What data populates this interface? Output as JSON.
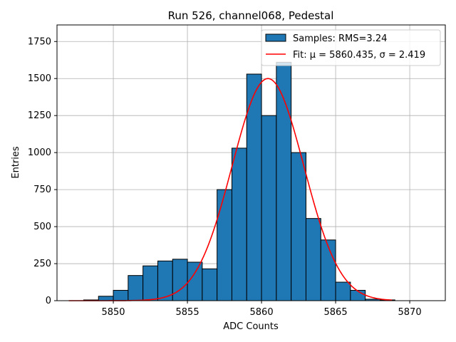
{
  "chart_data": {
    "type": "bar",
    "title": "Run 526, channel068, Pedestal",
    "xlabel": "ADC Counts",
    "ylabel": "Entries",
    "xlim": [
      5846.2,
      5872.4
    ],
    "ylim": [
      0,
      1862
    ],
    "xticks": [
      5850,
      5855,
      5860,
      5865,
      5870
    ],
    "yticks": [
      0,
      250,
      500,
      750,
      1000,
      1250,
      1500,
      1750
    ],
    "grid": true,
    "bin_width": 1.0,
    "bins": [
      {
        "left": 5848.0,
        "count": 5
      },
      {
        "left": 5849.0,
        "count": 30
      },
      {
        "left": 5850.0,
        "count": 70
      },
      {
        "left": 5851.0,
        "count": 170
      },
      {
        "left": 5852.0,
        "count": 235
      },
      {
        "left": 5853.0,
        "count": 268
      },
      {
        "left": 5854.0,
        "count": 280
      },
      {
        "left": 5855.0,
        "count": 260
      },
      {
        "left": 5856.0,
        "count": 215
      },
      {
        "left": 5857.0,
        "count": 750
      },
      {
        "left": 5858.0,
        "count": 1030
      },
      {
        "left": 5859.0,
        "count": 1530
      },
      {
        "left": 5860.0,
        "count": 1250
      },
      {
        "left": 5861.0,
        "count": 1610
      },
      {
        "left": 5862.0,
        "count": 1000
      },
      {
        "left": 5863.0,
        "count": 555
      },
      {
        "left": 5864.0,
        "count": 410
      },
      {
        "left": 5865.0,
        "count": 125
      },
      {
        "left": 5866.0,
        "count": 70
      },
      {
        "left": 5867.0,
        "count": 10
      },
      {
        "left": 5868.0,
        "count": 5
      }
    ],
    "fit": {
      "mu": 5860.435,
      "sigma": 2.419,
      "amplitude": 1500,
      "x_start": 5847.0,
      "x_end": 5868.8
    },
    "series": [
      {
        "name": "Samples: RMS=3.24",
        "kind": "hist",
        "color": "#1f77b4"
      },
      {
        "name": "Fit: μ = 5860.435, σ = 2.419",
        "kind": "line",
        "color": "#ff0000"
      }
    ],
    "legend": "top-right"
  }
}
